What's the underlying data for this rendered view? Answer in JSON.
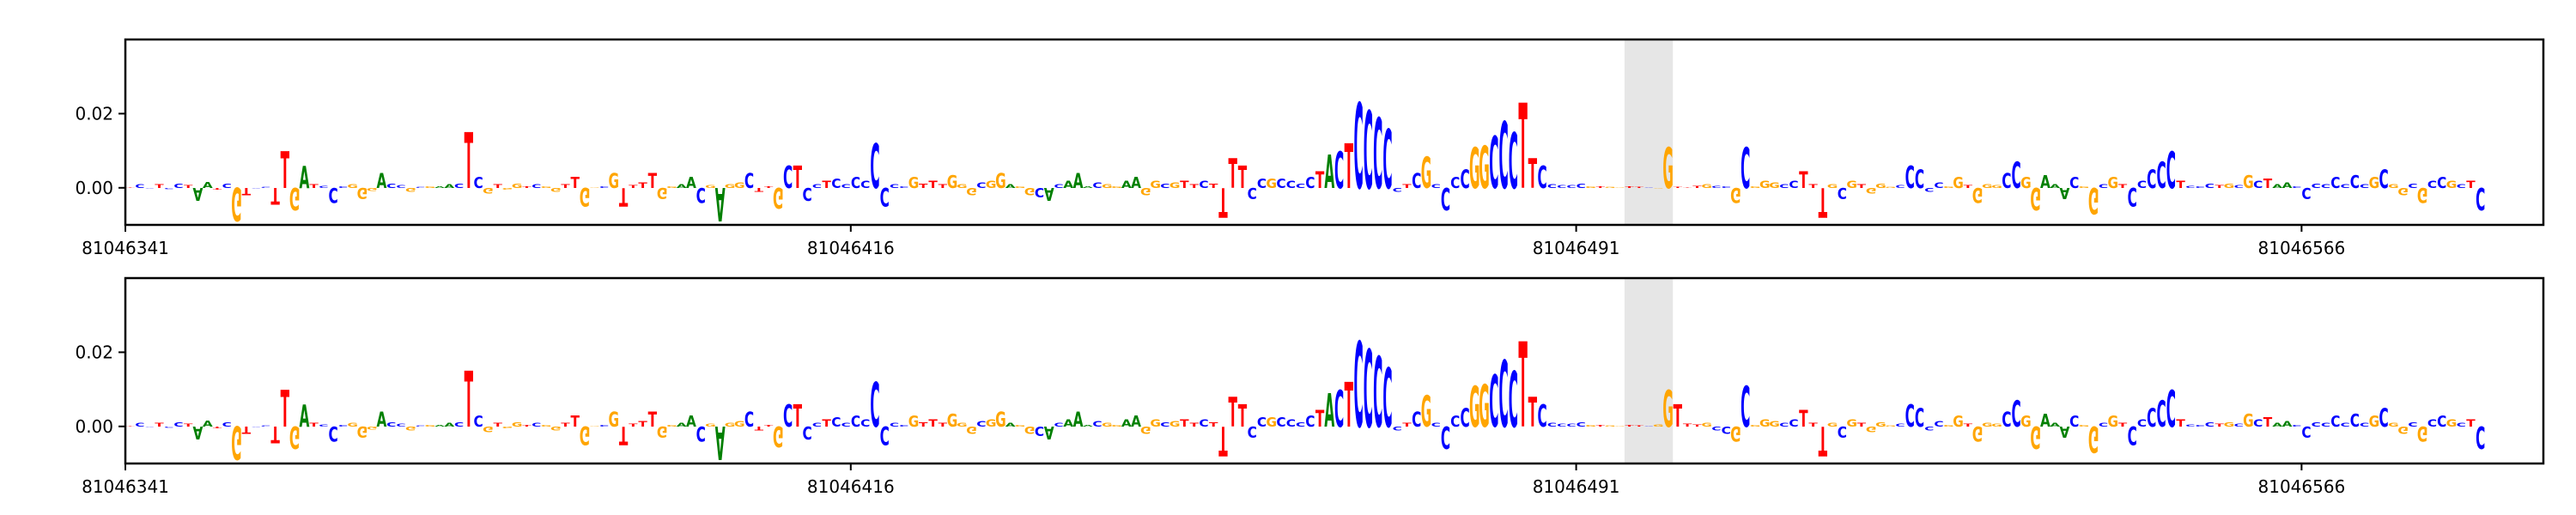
{
  "chart_data": [
    {
      "type": "sequence-logo",
      "panel": "top",
      "x_range": [
        81046341,
        81046591
      ],
      "x_ticks": [
        {
          "value": 81046341,
          "label": "81046341"
        },
        {
          "value": 81046416,
          "label": "81046416"
        },
        {
          "value": 81046491,
          "label": "81046491"
        },
        {
          "value": 81046566,
          "label": "81046566"
        }
      ],
      "y_ticks": [
        {
          "value": 0.0,
          "label": "0.00"
        },
        {
          "value": 0.02,
          "label": "0.02"
        }
      ],
      "ylim": [
        -0.01,
        0.04
      ],
      "highlight": [
        81046496,
        81046501
      ],
      "sequence": "TCCTCCTAATCGTCCTTGATCCCGGGACCGCGAACTCGTGGTCGGTTGGCGTTTTGGAACGAGGCTTGCTCCTCCCCCCCCGTTTGGGCGGAGGCACAAACGGAAGGCGTTCTTTTCCGCCCCTACTCCCCCTCGCCCCGGCCCTTCCCCCGTGGTTCGGTTTGCCGCGGGCCTTTGCGTGGGCCCCCGGTGGGCCGGAAACGGCGTCCCCCTCCCTGCGCTAACCCCCCCCGCGGCGCCGCTCGGCCCCC",
      "scores": [
        0.0002,
        0.0011,
        -0.0002,
        0.001,
        -0.0003,
        0.0012,
        0.0008,
        -0.0035,
        0.0016,
        -0.0005,
        0.0012,
        -0.009,
        -0.002,
        -0.0002,
        0.0003,
        -0.0045,
        0.01,
        -0.006,
        0.006,
        0.001,
        0.0006,
        -0.004,
        0.0005,
        0.001,
        -0.003,
        -0.0008,
        0.004,
        0.0012,
        0.0008,
        -0.001,
        0.0003,
        0.0005,
        0.0004,
        0.001,
        0.0012,
        0.015,
        0.003,
        -0.0015,
        0.001,
        -0.0005,
        0.0012,
        0.0005,
        0.001,
        0.0005,
        -0.001,
        0.001,
        0.003,
        -0.005,
        0.0002,
        0.0004,
        0.004,
        -0.005,
        0.0008,
        0.0015,
        0.004,
        -0.003,
        0.0005,
        0.001,
        0.003,
        -0.004,
        0.0008,
        -0.009,
        0.001,
        0.0015,
        0.004,
        -0.001,
        0.0005,
        -0.0055,
        0.006,
        0.006,
        -0.0035,
        0.001,
        0.002,
        0.0025,
        0.001,
        0.003,
        0.002,
        0.012,
        -0.005,
        0.001,
        0.0004,
        0.003,
        0.0012,
        0.002,
        0.001,
        0.0035,
        0.001,
        -0.002,
        0.0015,
        0.002,
        0.004,
        0.001,
        0.0005,
        -0.002,
        -0.0025,
        -0.0035,
        0.001,
        0.002,
        0.004,
        0.0005,
        0.0015,
        0.001,
        0.0005,
        0.002,
        0.003,
        -0.002,
        0.002,
        0.0012,
        0.0015,
        0.002,
        0.001,
        0.002,
        0.0012,
        -0.008,
        0.008,
        0.006,
        -0.003,
        0.0025,
        0.0025,
        0.0025,
        0.002,
        0.0012,
        0.003,
        0.0045,
        0.009,
        0.01,
        0.012,
        0.023,
        0.021,
        0.019,
        0.016,
        -0.001,
        0.001,
        0.004,
        0.0085,
        0.001,
        -0.006,
        0.003,
        0.005,
        0.011,
        0.0115,
        0.014,
        0.018,
        0.015,
        0.023,
        0.008,
        0.006,
        0.001,
        0.0007,
        0.0008,
        0.0012,
        0.0005,
        0.0005,
        0.0003,
        0.0002,
        0.0005,
        0.0003,
        0.0002,
        -0.0002,
        0.011,
        0.0003,
        0.0002,
        0.0006,
        0.001,
        0.0006,
        0.0005,
        -0.004,
        0.011,
        0.0005,
        0.002,
        0.0015,
        0.001,
        0.002,
        0.0045,
        0.001,
        -0.008,
        0.001,
        -0.003,
        0.002,
        0.001,
        -0.0015,
        0.0012,
        0.0003,
        0.0008,
        0.006,
        0.005,
        -0.001,
        0.0015,
        0.0004,
        0.003,
        0.0008,
        -0.004,
        0.001,
        0.0008,
        0.004,
        0.007,
        0.003,
        -0.006,
        0.0035,
        0.001,
        -0.003,
        0.003,
        0.0005,
        -0.007,
        0.001,
        0.003,
        0.001,
        -0.005,
        0.002,
        0.005,
        0.007,
        0.01,
        0.002,
        0.0006,
        0.0005,
        0.0012,
        0.0008,
        0.0012,
        0.0008,
        0.0035,
        0.002,
        0.0025,
        0.001,
        0.0015,
        0.0005,
        -0.003,
        0.0012,
        0.001,
        0.003,
        0.001,
        0.0035,
        0.001,
        0.003,
        0.005,
        0.001,
        -0.002,
        0.0012,
        -0.004,
        0.002,
        0.003,
        0.002,
        0.001,
        0.002,
        -0.006
      ]
    },
    {
      "type": "sequence-logo",
      "panel": "bottom",
      "x_range": [
        81046341,
        81046591
      ],
      "x_ticks": [
        {
          "value": 81046341,
          "label": "81046341"
        },
        {
          "value": 81046416,
          "label": "81046416"
        },
        {
          "value": 81046491,
          "label": "81046491"
        },
        {
          "value": 81046566,
          "label": "81046566"
        }
      ],
      "y_ticks": [
        {
          "value": 0.0,
          "label": "0.00"
        },
        {
          "value": 0.02,
          "label": "0.02"
        }
      ],
      "ylim": [
        -0.01,
        0.04
      ],
      "highlight": [
        81046496,
        81046501
      ],
      "sequence": "TCCTCCTAATCGTCCTTGATCCCGGGACCGCGAACTCGTGGTCGGTTGGCGTTTTGGAACGAGGCTTGCTCCTCCCCCCCCGTTTGGGCGGAGGCACAAACGGAAGGCGTTCTTTTCCGCCCCTACTCCCCCTCGCCCCGGCCCTTCCCCCGTGGTTCGGTTTGCCGCGGGCCTTTGCGTGGGCCCCCGGTGGGCCGGAAACGGCGTCCCCCTCCCTGCGCTAACCCCCCCCGCGGCGCCGCTCGGCCCCC",
      "scores": [
        0.0002,
        0.0011,
        -0.0002,
        0.001,
        -0.0003,
        0.0012,
        0.0008,
        -0.0035,
        0.0016,
        -0.0005,
        0.0012,
        -0.009,
        -0.002,
        -0.0002,
        0.0003,
        -0.0045,
        0.01,
        -0.006,
        0.006,
        0.001,
        0.0006,
        -0.004,
        0.0005,
        0.001,
        -0.003,
        -0.0008,
        0.004,
        0.0012,
        0.0008,
        -0.001,
        0.0003,
        0.0005,
        0.0004,
        0.001,
        0.0012,
        0.015,
        0.003,
        -0.0015,
        0.001,
        -0.0005,
        0.0012,
        0.0005,
        0.001,
        0.0005,
        -0.001,
        0.001,
        0.003,
        -0.005,
        0.0002,
        0.0004,
        0.004,
        -0.005,
        0.0008,
        0.0015,
        0.004,
        -0.003,
        0.0005,
        0.001,
        0.003,
        -0.004,
        0.0008,
        -0.009,
        0.001,
        0.0015,
        0.004,
        -0.001,
        0.0005,
        -0.0055,
        0.006,
        0.006,
        -0.0035,
        0.001,
        0.002,
        0.0025,
        0.001,
        0.003,
        0.002,
        0.012,
        -0.005,
        0.001,
        0.0004,
        0.003,
        0.0012,
        0.002,
        0.001,
        0.0035,
        0.001,
        -0.002,
        0.0015,
        0.002,
        0.004,
        0.001,
        0.0005,
        -0.002,
        -0.0025,
        -0.0035,
        0.001,
        0.002,
        0.004,
        0.0005,
        0.0015,
        0.001,
        0.0005,
        0.002,
        0.003,
        -0.002,
        0.002,
        0.0012,
        0.0015,
        0.002,
        0.001,
        0.002,
        0.0012,
        -0.008,
        0.008,
        0.006,
        -0.003,
        0.0025,
        0.0025,
        0.0025,
        0.002,
        0.0012,
        0.003,
        0.0045,
        0.009,
        0.01,
        0.012,
        0.023,
        0.021,
        0.019,
        0.016,
        -0.001,
        0.001,
        0.004,
        0.0085,
        0.001,
        -0.006,
        0.003,
        0.005,
        0.011,
        0.0115,
        0.014,
        0.018,
        0.015,
        0.023,
        0.008,
        0.006,
        0.001,
        0.0007,
        0.0008,
        0.0012,
        0.0005,
        0.0005,
        0.0003,
        0.0002,
        0.0005,
        0.0003,
        0.0002,
        0.0006,
        0.01,
        0.006,
        0.0008,
        0.0006,
        0.001,
        -0.001,
        -0.002,
        -0.004,
        0.011,
        0.0005,
        0.002,
        0.0015,
        0.001,
        0.002,
        0.0045,
        0.001,
        -0.008,
        0.001,
        -0.003,
        0.002,
        0.001,
        -0.0015,
        0.0012,
        0.0003,
        0.0008,
        0.006,
        0.005,
        -0.001,
        0.0015,
        0.0004,
        0.003,
        0.0008,
        -0.004,
        0.001,
        0.0008,
        0.004,
        0.007,
        0.003,
        -0.006,
        0.0035,
        0.001,
        -0.003,
        0.003,
        0.0005,
        -0.007,
        0.001,
        0.003,
        0.001,
        -0.005,
        0.002,
        0.005,
        0.007,
        0.01,
        0.002,
        0.0006,
        0.0005,
        0.0012,
        0.0008,
        0.0012,
        0.0008,
        0.0035,
        0.002,
        0.0025,
        0.001,
        0.0015,
        0.0005,
        -0.003,
        0.0012,
        0.001,
        0.003,
        0.001,
        0.0035,
        0.001,
        0.003,
        0.005,
        0.001,
        -0.002,
        0.0012,
        -0.004,
        0.002,
        0.003,
        0.002,
        0.001,
        0.002,
        -0.006
      ]
    }
  ],
  "colors": {
    "A": "#008000",
    "C": "#0000ff",
    "G": "#ffa500",
    "T": "#ff0000",
    "highlight": "#e6e6e6",
    "axis": "#000000"
  }
}
